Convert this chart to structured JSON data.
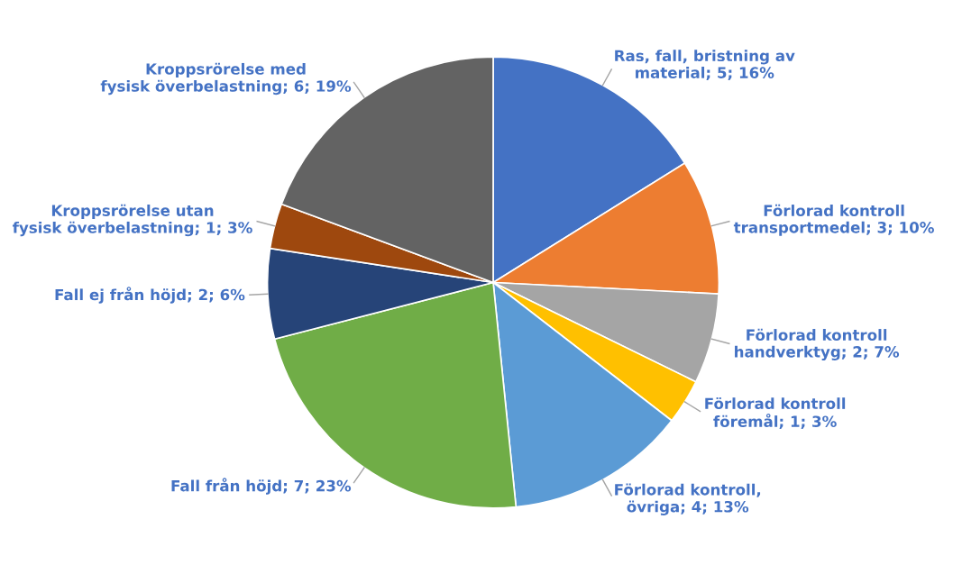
{
  "chart_data": {
    "type": "pie",
    "categories": [
      "Ras, fall, bristning av\nmaterial",
      "Förlorad kontroll\ntransportmedel",
      "Förlorad kontroll\nhandverktyg",
      "Förlorad kontroll\nföremål",
      "Förlorad kontroll,\növriga",
      "Fall från höjd",
      "Fall ej från höjd",
      "Kroppsrörelse utan\nfysisk överbelastning",
      "Kroppsrörelse med\nfysisk överbelastning"
    ],
    "values": [
      5,
      3,
      2,
      1,
      4,
      7,
      2,
      1,
      6
    ],
    "value_labels": [
      "5; 16%",
      "3; 10%",
      "2; 7%",
      "1; 3%",
      "4; 13%",
      "7; 23%",
      "2; 6%",
      "1; 3%",
      "6; 19%"
    ],
    "colors": [
      "#4472c4",
      "#ed7d31",
      "#a5a5a5",
      "#ffc000",
      "#5b9bd5",
      "#70ad47",
      "#264478",
      "#9e480e",
      "#636363"
    ],
    "legend": false
  }
}
